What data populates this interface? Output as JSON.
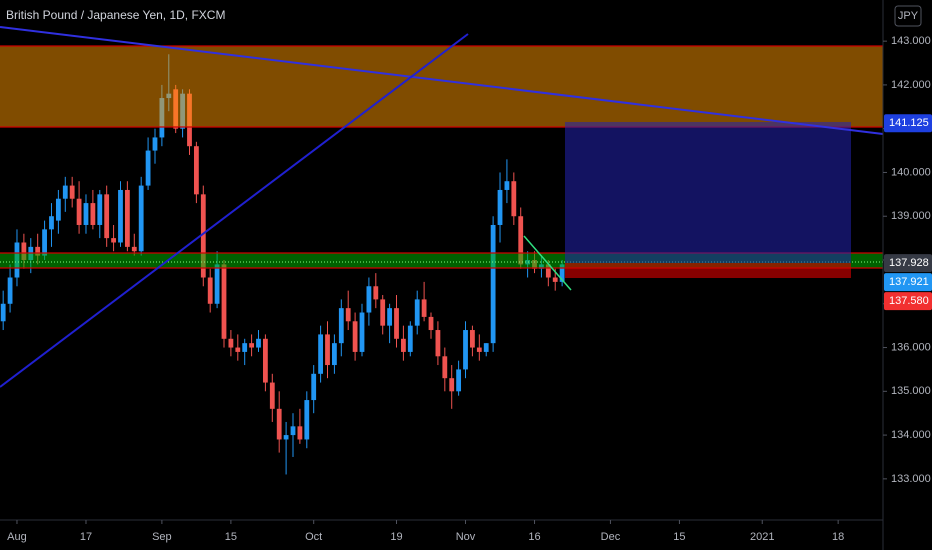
{
  "chart_data": {
    "type": "candlestick",
    "title": "British Pound / Japanese Yen, 1D, FXCM",
    "currency": "JPY",
    "up_color": "#2196f3",
    "down_color": "#ef5350",
    "x": [
      -2,
      -1,
      0,
      1,
      2,
      3,
      4,
      5,
      6,
      7,
      8,
      9,
      10,
      11,
      12,
      13,
      14,
      15,
      16,
      17,
      18,
      19,
      20,
      21,
      22,
      23,
      24,
      25,
      26,
      27,
      28,
      29,
      30,
      31,
      32,
      33,
      34,
      35,
      36,
      37,
      38,
      39,
      40,
      41,
      42,
      43,
      44,
      45,
      46,
      47,
      48,
      49,
      50,
      51,
      52,
      53,
      54,
      55,
      56,
      57,
      58,
      59,
      60,
      61,
      62,
      63,
      64,
      65,
      66,
      67,
      68,
      69,
      70,
      71,
      72,
      73,
      74,
      75,
      76,
      77,
      78,
      79
    ],
    "open": [
      136.6,
      137.0,
      137.6,
      138.4,
      138.0,
      138.3,
      138.1,
      138.7,
      138.9,
      139.4,
      139.7,
      139.4,
      138.8,
      139.3,
      138.8,
      139.5,
      138.5,
      138.4,
      139.6,
      138.3,
      138.2,
      139.7,
      140.5,
      140.8,
      141.7,
      141.9,
      141.0,
      141.8,
      140.6,
      139.5,
      137.6,
      137.0,
      137.9,
      136.2,
      136.0,
      135.9,
      136.1,
      136.0,
      136.2,
      135.2,
      134.6,
      133.9,
      134.0,
      134.2,
      133.9,
      134.8,
      135.4,
      136.3,
      135.6,
      136.1,
      136.9,
      136.6,
      135.9,
      136.8,
      137.4,
      137.1,
      136.5,
      136.9,
      136.2,
      135.9,
      136.5,
      137.1,
      136.7,
      136.4,
      135.8,
      135.3,
      135.0,
      135.5,
      136.4,
      136.0,
      135.9,
      136.1,
      138.8,
      139.6,
      139.8,
      139.0,
      137.9,
      138.0,
      137.8,
      137.9,
      137.6,
      137.5
    ],
    "high": [
      137.3,
      137.9,
      138.7,
      138.6,
      138.5,
      138.6,
      138.9,
      139.3,
      139.6,
      139.9,
      139.9,
      139.8,
      139.5,
      139.6,
      139.6,
      139.7,
      138.8,
      139.8,
      139.8,
      138.6,
      139.9,
      140.8,
      141.0,
      142.0,
      142.7,
      142.0,
      141.9,
      141.9,
      140.7,
      139.7,
      137.8,
      138.2,
      138.0,
      136.4,
      136.3,
      136.2,
      136.3,
      136.4,
      136.3,
      135.4,
      135.0,
      134.3,
      134.5,
      134.6,
      135.0,
      135.6,
      136.5,
      136.6,
      136.3,
      137.1,
      137.3,
      136.8,
      137.0,
      137.6,
      137.7,
      137.2,
      137.0,
      137.2,
      136.5,
      136.6,
      137.3,
      137.5,
      136.8,
      136.6,
      136.0,
      135.6,
      135.7,
      136.6,
      136.5,
      136.3,
      136.1,
      139.0,
      140.0,
      140.3,
      140.0,
      139.2,
      138.2,
      138.2,
      138.1,
      138.0,
      137.8,
      138.0
    ],
    "low": [
      136.4,
      136.8,
      137.4,
      137.8,
      137.7,
      137.9,
      138.0,
      138.3,
      138.6,
      139.1,
      139.2,
      138.6,
      138.6,
      138.7,
      138.5,
      138.3,
      138.2,
      138.3,
      138.2,
      138.1,
      138.1,
      139.6,
      140.2,
      140.6,
      141.4,
      140.9,
      140.8,
      140.4,
      139.3,
      137.4,
      136.8,
      136.9,
      136.0,
      135.8,
      135.7,
      135.6,
      135.8,
      135.9,
      135.0,
      134.3,
      133.6,
      133.1,
      133.5,
      133.8,
      133.7,
      134.5,
      135.2,
      135.3,
      135.4,
      135.8,
      136.4,
      135.7,
      135.8,
      136.5,
      136.9,
      136.3,
      136.1,
      136.0,
      135.7,
      135.8,
      136.3,
      136.6,
      136.2,
      135.6,
      135.0,
      134.6,
      134.9,
      135.3,
      135.8,
      135.7,
      135.8,
      135.9,
      138.4,
      139.3,
      138.8,
      137.8,
      137.6,
      137.7,
      137.6,
      137.4,
      137.3,
      137.4
    ],
    "close": [
      137.0,
      137.6,
      138.4,
      138.0,
      138.3,
      138.1,
      138.7,
      139.0,
      139.4,
      139.7,
      139.4,
      138.8,
      139.3,
      138.8,
      139.5,
      138.5,
      138.4,
      139.6,
      138.3,
      138.2,
      139.7,
      140.5,
      140.8,
      141.7,
      141.8,
      141.0,
      141.8,
      140.6,
      139.5,
      137.6,
      137.0,
      137.9,
      136.2,
      136.0,
      135.9,
      136.1,
      136.0,
      136.2,
      135.2,
      134.6,
      133.9,
      134.0,
      134.2,
      133.9,
      134.8,
      135.4,
      136.3,
      135.6,
      136.1,
      136.9,
      136.6,
      135.9,
      136.8,
      137.4,
      137.1,
      136.5,
      136.9,
      136.2,
      135.9,
      136.5,
      137.1,
      136.7,
      136.4,
      135.8,
      135.3,
      135.0,
      135.5,
      136.4,
      136.0,
      135.9,
      136.1,
      138.8,
      139.6,
      139.8,
      139.0,
      137.9,
      138.0,
      137.8,
      137.9,
      137.6,
      137.5,
      137.9
    ],
    "xlim": [
      -2.46,
      125.5
    ],
    "ylim": [
      132.06,
      143.94
    ],
    "xticks": [
      {
        "value": 0,
        "label": "Aug"
      },
      {
        "value": 10,
        "label": "17"
      },
      {
        "value": 21,
        "label": "Sep"
      },
      {
        "value": 31,
        "label": "15"
      },
      {
        "value": 43,
        "label": "Oct"
      },
      {
        "value": 55,
        "label": "19"
      },
      {
        "value": 65,
        "label": "Nov"
      },
      {
        "value": 75,
        "label": "16"
      },
      {
        "value": 86,
        "label": "Dec"
      },
      {
        "value": 96,
        "label": "15"
      },
      {
        "value": 108,
        "label": "2021"
      },
      {
        "value": 119,
        "label": "18"
      }
    ],
    "yticks": [
      {
        "value": 133,
        "label": "133.000"
      },
      {
        "value": 134,
        "label": "134.000"
      },
      {
        "value": 135,
        "label": "135.000"
      },
      {
        "value": 136,
        "label": "136.000"
      },
      {
        "value": 137,
        "label": "137.000"
      },
      {
        "value": 138,
        "label": "138.000"
      },
      {
        "value": 139,
        "label": "139.000"
      },
      {
        "value": 140,
        "label": "140.000"
      },
      {
        "value": 141,
        "label": "141.000"
      },
      {
        "value": 142,
        "label": "142.000"
      },
      {
        "value": 143,
        "label": "143.000"
      }
    ],
    "price_labels": [
      {
        "value": 141.125,
        "label": "141.125",
        "color": "#1e40e0"
      },
      {
        "value": 137.928,
        "label": "137.928",
        "color": "#363a45"
      },
      {
        "value": 137.921,
        "label": "137.921",
        "color": "#2196f3"
      },
      {
        "value": 137.58,
        "label": "137.580",
        "color": "#f23030"
      }
    ]
  }
}
